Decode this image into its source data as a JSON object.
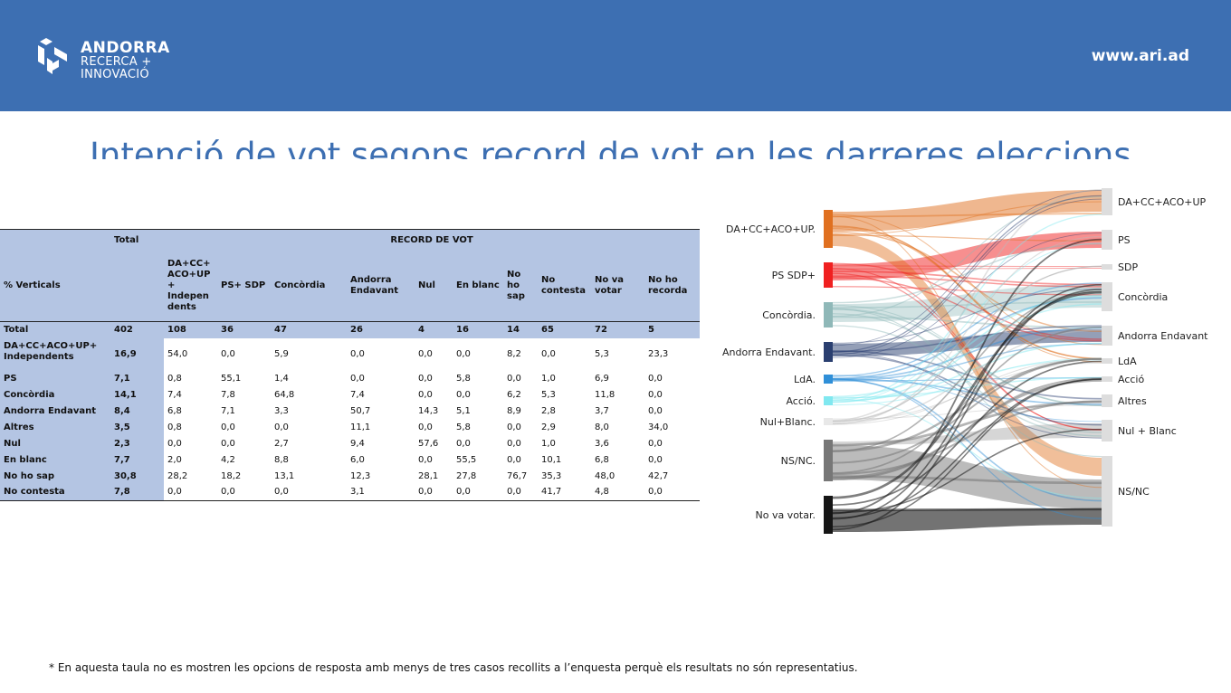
{
  "header": {
    "logo_line1": "ANDORRA",
    "logo_line2": "RECERCA +",
    "logo_line3": "INNOVACIÓ",
    "site": "www.ari.ad",
    "bar_color": "#3d6fb2"
  },
  "title": "Intenció de vot segons record de vot en les darreres eleccions",
  "table": {
    "stub_header": "% Verticals",
    "total_header": "Total",
    "group_header": "RECORD DE VOT",
    "columns": [
      "DA+CC+ ACO+UP + Indepen dents",
      "PS+ SDP",
      "Concòrdia",
      "Andorra Endavant",
      "Nul",
      "En blanc",
      "No ho sap",
      "No contesta",
      "No va votar",
      "No ho recorda"
    ],
    "total_row": {
      "label": "Total",
      "total": "402",
      "values": [
        "108",
        "36",
        "47",
        "26",
        "4",
        "16",
        "14",
        "65",
        "72",
        "5"
      ]
    },
    "rows": [
      {
        "label": "DA+CC+ACO+UP+ Independents",
        "total": "16,9",
        "values": [
          "54,0",
          "0,0",
          "5,9",
          "0,0",
          "0,0",
          "0,0",
          "8,2",
          "0,0",
          "5,3",
          "23,3"
        ]
      },
      {
        "label": "PS",
        "total": "7,1",
        "values": [
          "0,8",
          "55,1",
          "1,4",
          "0,0",
          "0,0",
          "5,8",
          "0,0",
          "1,0",
          "6,9",
          "0,0"
        ]
      },
      {
        "label": "Concòrdia",
        "total": "14,1",
        "values": [
          "7,4",
          "7,8",
          "64,8",
          "7,4",
          "0,0",
          "0,0",
          "6,2",
          "5,3",
          "11,8",
          "0,0"
        ]
      },
      {
        "label": "Andorra Endavant",
        "total": "8,4",
        "values": [
          "6,8",
          "7,1",
          "3,3",
          "50,7",
          "14,3",
          "5,1",
          "8,9",
          "2,8",
          "3,7",
          "0,0"
        ]
      },
      {
        "label": "Altres",
        "total": "3,5",
        "values": [
          "0,8",
          "0,0",
          "0,0",
          "11,1",
          "0,0",
          "5,8",
          "0,0",
          "2,9",
          "8,0",
          "34,0"
        ]
      },
      {
        "label": "Nul",
        "total": "2,3",
        "values": [
          "0,0",
          "0,0",
          "2,7",
          "9,4",
          "57,6",
          "0,0",
          "0,0",
          "1,0",
          "3,6",
          "0,0"
        ]
      },
      {
        "label": "En blanc",
        "total": "7,7",
        "values": [
          "2,0",
          "4,2",
          "8,8",
          "6,0",
          "0,0",
          "55,5",
          "0,0",
          "10,1",
          "6,8",
          "0,0"
        ]
      },
      {
        "label": "No ho sap",
        "total": "30,8",
        "values": [
          "28,2",
          "18,2",
          "13,1",
          "12,3",
          "28,1",
          "27,8",
          "76,7",
          "35,3",
          "48,0",
          "42,7"
        ]
      },
      {
        "label": "No contesta",
        "total": "7,8",
        "values": [
          "0,0",
          "0,0",
          "0,0",
          "3,1",
          "0,0",
          "0,0",
          "0,0",
          "41,7",
          "4,8",
          "0,0"
        ]
      }
    ],
    "header_fill": "#b4c5e3"
  },
  "chart_data": {
    "type": "sankey",
    "source_nodes": [
      {
        "name": "DA+CC+ACO+UP.",
        "color": "#e07020"
      },
      {
        "name": "PS SDP+",
        "color": "#f02020"
      },
      {
        "name": "Concòrdia.",
        "color": "#8fb8b8"
      },
      {
        "name": "Andorra Endavant.",
        "color": "#2a3f70"
      },
      {
        "name": "LdA.",
        "color": "#2f8fd8"
      },
      {
        "name": "Acció.",
        "color": "#80e8f0"
      },
      {
        "name": "Nul+Blanc.",
        "color": "#e8e8e8"
      },
      {
        "name": "NS/NC.",
        "color": "#777777"
      },
      {
        "name": "No va votar.",
        "color": "#151515"
      }
    ],
    "target_nodes": [
      {
        "name": "DA+CC+ACO+UP"
      },
      {
        "name": "PS"
      },
      {
        "name": "SDP"
      },
      {
        "name": "Concòrdia"
      },
      {
        "name": "Andorra Endavant"
      },
      {
        "name": "LdA"
      },
      {
        "name": "Acció"
      },
      {
        "name": "Altres"
      },
      {
        "name": "Nul + Blanc"
      },
      {
        "name": "NS/NC"
      }
    ]
  },
  "footnote": "* En aquesta taula no es mostren les opcions de resposta amb menys de tres casos recollits  a l’enquesta perquè els resultats no són representatius."
}
